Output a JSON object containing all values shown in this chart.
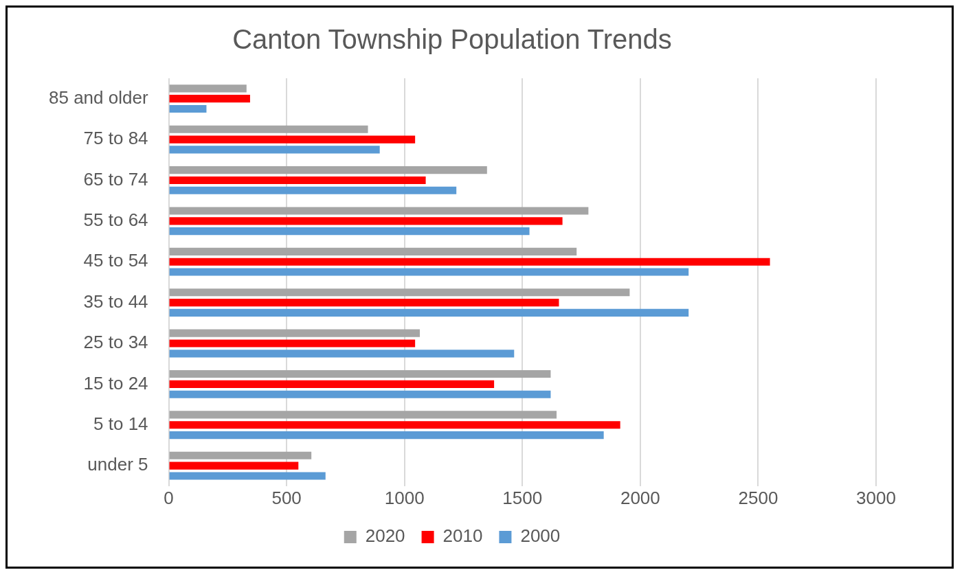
{
  "chart_data": {
    "type": "bar",
    "orientation": "horizontal",
    "title": "Canton Township Population Trends",
    "categories": [
      "85 and older",
      "75 to 84",
      "65 to 74",
      "55 to 64",
      "45 to 54",
      "35 to 44",
      "25 to 34",
      "15 to 24",
      "5 to 14",
      "under 5"
    ],
    "series": [
      {
        "name": "2020",
        "color": "#a5a5a5",
        "values": [
          330,
          845,
          1350,
          1780,
          1730,
          1955,
          1065,
          1620,
          1645,
          605
        ]
      },
      {
        "name": "2010",
        "color": "#ff0000",
        "values": [
          345,
          1045,
          1090,
          1670,
          2550,
          1655,
          1045,
          1380,
          1915,
          550
        ]
      },
      {
        "name": "2000",
        "color": "#5b9bd5",
        "values": [
          160,
          895,
          1220,
          1530,
          2205,
          2205,
          1465,
          1620,
          1845,
          665
        ]
      }
    ],
    "xlim": [
      0,
      3000
    ],
    "xticks": [
      0,
      500,
      1000,
      1500,
      2000,
      2500,
      3000
    ],
    "grid": "x",
    "legend": "bottom"
  }
}
